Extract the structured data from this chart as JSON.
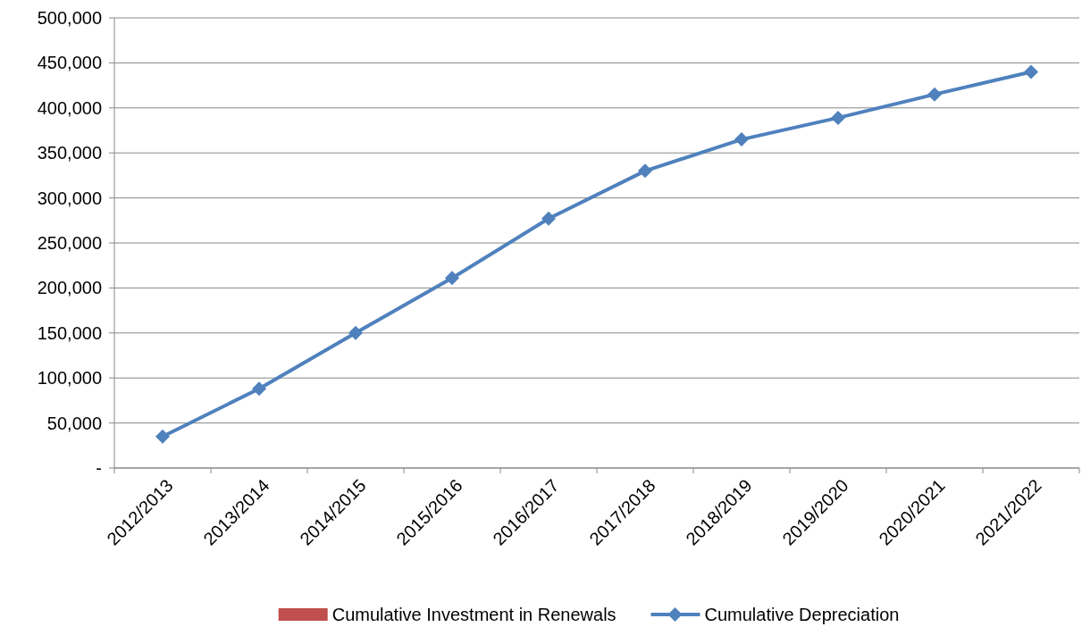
{
  "chart_data": {
    "type": "line",
    "categories": [
      "2012/2013",
      "2013/2014",
      "2014/2015",
      "2015/2016",
      "2016/2017",
      "2017/2018",
      "2018/2019",
      "2019/2020",
      "2020/2021",
      "2021/2022"
    ],
    "series": [
      {
        "name": "Cumulative Investment in Renewals",
        "type": "bar",
        "color": "#c0504d",
        "values": [
          null,
          null,
          null,
          null,
          null,
          null,
          null,
          null,
          null,
          null
        ]
      },
      {
        "name": "Cumulative Depreciation",
        "color": "#4f81bd",
        "values": [
          35000,
          88000,
          150000,
          211000,
          277000,
          330000,
          365000,
          389000,
          415000,
          440000
        ]
      }
    ],
    "ylim": [
      0,
      500000
    ],
    "yticks": [
      {
        "value": 0,
        "label": "-"
      },
      {
        "value": 50000,
        "label": "50,000"
      },
      {
        "value": 100000,
        "label": "100,000"
      },
      {
        "value": 150000,
        "label": "150,000"
      },
      {
        "value": 200000,
        "label": "200,000"
      },
      {
        "value": 250000,
        "label": "250,000"
      },
      {
        "value": 300000,
        "label": "300,000"
      },
      {
        "value": 350000,
        "label": "350,000"
      },
      {
        "value": 400000,
        "label": "400,000"
      },
      {
        "value": 450000,
        "label": "450,000"
      },
      {
        "value": 500000,
        "label": "500,000"
      }
    ],
    "grid": "y",
    "legend": "bottom",
    "marker": "diamond",
    "line_style": "solid"
  }
}
